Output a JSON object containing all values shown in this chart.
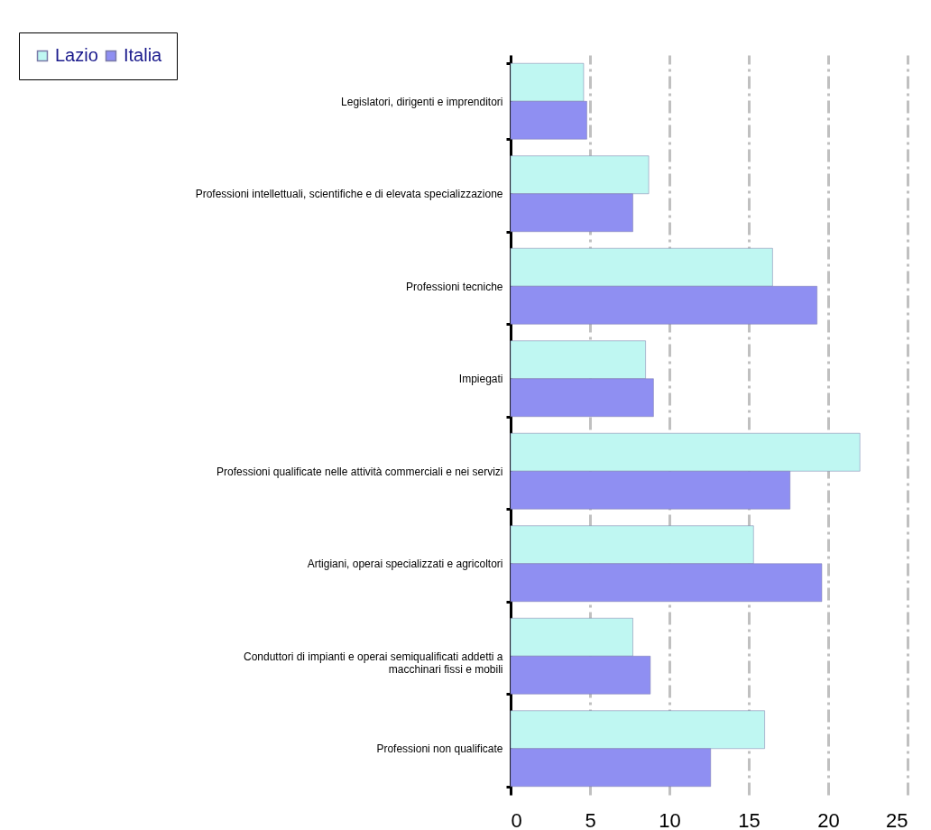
{
  "chart_data": {
    "type": "bar",
    "orientation": "horizontal",
    "categories": [
      "Legislatori, dirigenti e imprenditori",
      "Professioni intellettuali, scientifiche e di elevata specializzazione",
      "Professioni tecniche",
      "Impiegati",
      "Professioni qualificate nelle attività commerciali e nei servizi",
      "Artigiani, operai specializzati e agricoltori",
      "Conduttori di impianti e operai semiqualificati addetti a macchinari fissi e mobili",
      "Professioni non qualificate"
    ],
    "series": [
      {
        "name": "Lazio",
        "color": "#bff7f2",
        "values": [
          4.6,
          8.7,
          16.5,
          8.5,
          22.0,
          15.3,
          7.7,
          16.0
        ]
      },
      {
        "name": "Italia",
        "color": "#8f8ff2",
        "values": [
          4.8,
          7.7,
          19.3,
          9.0,
          17.6,
          19.6,
          8.8,
          12.6
        ]
      }
    ],
    "xlim": [
      0,
      25
    ],
    "xticks": [
      0,
      5,
      10,
      15,
      20,
      25
    ],
    "grid": "x",
    "legend": "top left"
  }
}
